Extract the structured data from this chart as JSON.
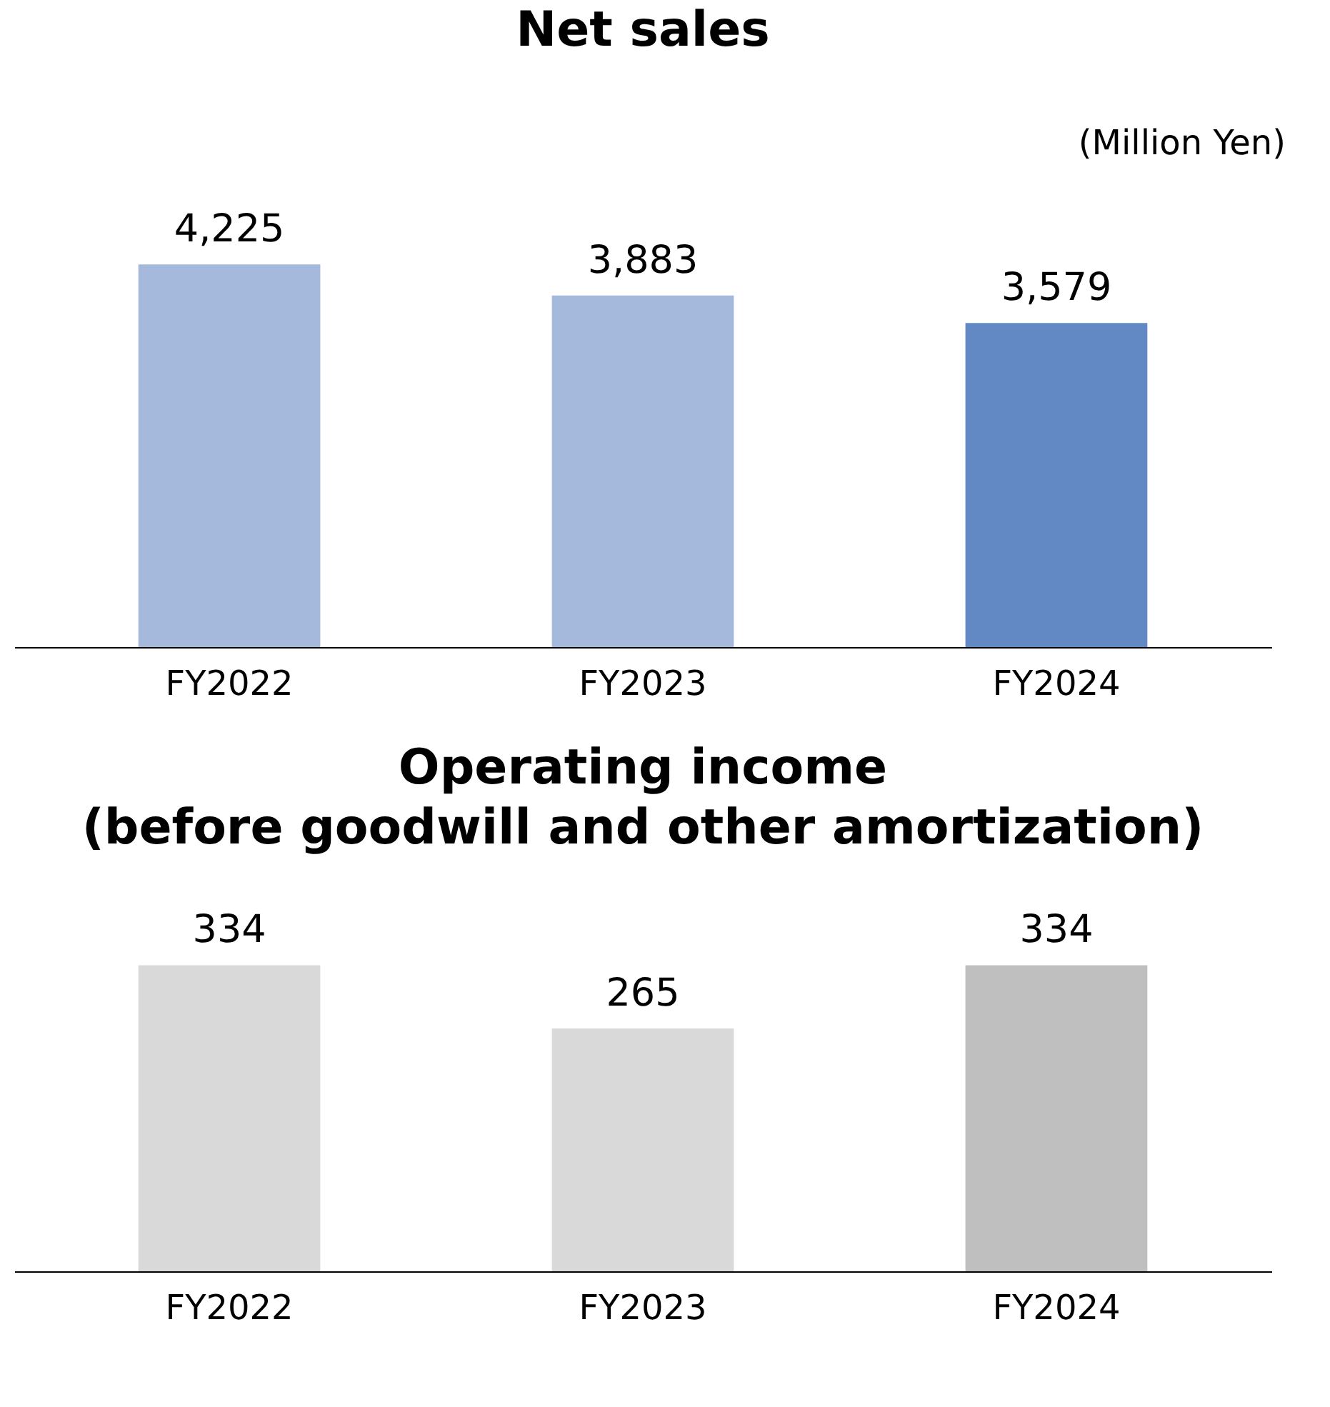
{
  "chart_data": [
    {
      "type": "bar",
      "title": "Net sales",
      "annotations": [
        "(Million Yen)"
      ],
      "categories": [
        "FY2022",
        "FY2023",
        "FY2024"
      ],
      "values": [
        4225,
        3883,
        3579
      ],
      "colors": [
        "#a4b9db",
        "#a4b9db",
        "#6289c3"
      ],
      "value_labels": [
        "4,225",
        "3,883",
        "3,579"
      ]
    },
    {
      "type": "bar",
      "title": "Operating income\n(before goodwill and other amortization)",
      "categories": [
        "FY2022",
        "FY2023",
        "FY2024"
      ],
      "values": [
        334,
        265,
        334
      ],
      "colors": [
        "#d9d9d9",
        "#d9d9d9",
        "#bfbfbf"
      ],
      "data_labels": true
    }
  ]
}
